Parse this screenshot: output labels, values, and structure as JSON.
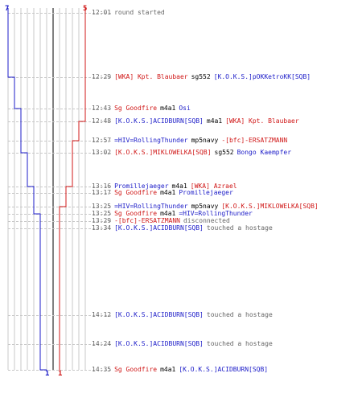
{
  "colors": {
    "blue": "#1c1cc8",
    "red": "#d01818",
    "grid": "#c8c8c8",
    "mid": "#808080",
    "text": "#666666"
  },
  "team_counts": {
    "blue_start": "7",
    "red_start": "5",
    "blue_end": "1",
    "red_end": "1"
  },
  "events": [
    {
      "time": "12:01",
      "parts": [
        {
          "t": "round started",
          "c": "text"
        }
      ]
    },
    {
      "time": "12:29",
      "parts": [
        {
          "t": "[WKA] Kpt. Blaubaer",
          "c": "red"
        },
        {
          "t": "sg552",
          "c": "plain"
        },
        {
          "t": "[K.O.K.S.]pOKKetroKK[SQB]",
          "c": "blue"
        }
      ]
    },
    {
      "time": "12:43",
      "parts": [
        {
          "t": "Sg Goodfire",
          "c": "red"
        },
        {
          "t": "m4a1",
          "c": "plain"
        },
        {
          "t": "Osi",
          "c": "blue"
        }
      ]
    },
    {
      "time": "12:48",
      "parts": [
        {
          "t": "[K.O.K.S.]ACIDBURN[SQB]",
          "c": "blue"
        },
        {
          "t": "m4a1",
          "c": "plain"
        },
        {
          "t": "[WKA] Kpt. Blaubaer",
          "c": "red"
        }
      ]
    },
    {
      "time": "12:57",
      "parts": [
        {
          "t": "=HIV=RollingThunder",
          "c": "blue"
        },
        {
          "t": "mp5navy",
          "c": "plain"
        },
        {
          "t": "-[bfc]-ERSATZMANN",
          "c": "red"
        }
      ]
    },
    {
      "time": "13:02",
      "parts": [
        {
          "t": "[K.O.K.S.]MIKLOWELKA[SQB]",
          "c": "red"
        },
        {
          "t": "sg552",
          "c": "plain"
        },
        {
          "t": "Bongo Kaempfer",
          "c": "blue"
        }
      ]
    },
    {
      "time": "13:16",
      "parts": [
        {
          "t": "Promillejaeger",
          "c": "blue"
        },
        {
          "t": "m4a1",
          "c": "plain"
        },
        {
          "t": "[WKA] Azrael",
          "c": "red"
        }
      ]
    },
    {
      "time": "13:17",
      "parts": [
        {
          "t": "Sg Goodfire",
          "c": "red"
        },
        {
          "t": "m4a1",
          "c": "plain"
        },
        {
          "t": "Promillejaeger",
          "c": "blue"
        }
      ]
    },
    {
      "time": "13:25",
      "parts": [
        {
          "t": "=HIV=RollingThunder",
          "c": "blue"
        },
        {
          "t": "mp5navy",
          "c": "plain"
        },
        {
          "t": "[K.O.K.S.]MIKLOWELKA[SQB]",
          "c": "red"
        }
      ]
    },
    {
      "time": "13:25",
      "parts": [
        {
          "t": "Sg Goodfire",
          "c": "red"
        },
        {
          "t": "m4a1",
          "c": "plain"
        },
        {
          "t": "=HIV=RollingThunder",
          "c": "blue"
        }
      ]
    },
    {
      "time": "13:29",
      "parts": [
        {
          "t": "-[bfc]-ERSATZMANN",
          "c": "red"
        },
        {
          "t": "disconnected",
          "c": "text"
        }
      ]
    },
    {
      "time": "13:34",
      "parts": [
        {
          "t": "[K.O.K.S.]ACIDBURN[SQB]",
          "c": "blue"
        },
        {
          "t": "touched a hostage",
          "c": "text"
        }
      ]
    },
    {
      "time": "14:12",
      "parts": [
        {
          "t": "[K.O.K.S.]ACIDBURN[SQB]",
          "c": "blue"
        },
        {
          "t": "touched a hostage",
          "c": "text"
        }
      ]
    },
    {
      "time": "14:24",
      "parts": [
        {
          "t": "[K.O.K.S.]ACIDBURN[SQB]",
          "c": "blue"
        },
        {
          "t": "touched a hostage",
          "c": "text"
        }
      ]
    },
    {
      "time": "14:35",
      "parts": [
        {
          "t": "Sg Goodfire",
          "c": "red"
        },
        {
          "t": "m4a1",
          "c": "plain"
        },
        {
          "t": "[K.O.K.S.]ACIDBURN[SQB]",
          "c": "blue"
        }
      ]
    }
  ]
}
